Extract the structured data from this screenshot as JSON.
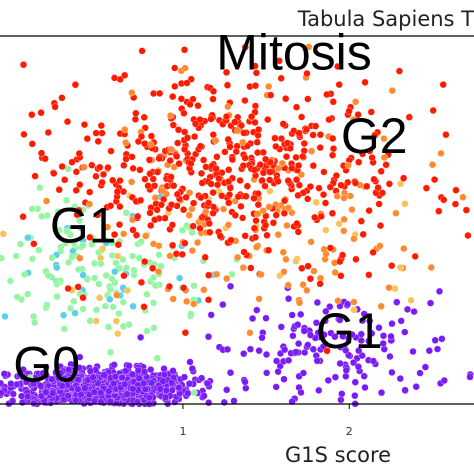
{
  "chart_data": {
    "type": "scatter",
    "title": "Tabula Sapiens T",
    "xlabel": "G1S score",
    "ylabel": "",
    "xlim": [
      -0.1,
      2.75
    ],
    "ylim": [
      0,
      3.3
    ],
    "x_ticks": [
      "1",
      "2"
    ],
    "grid": false,
    "colormap": "rainbow",
    "colors": [
      "#7a1cf6",
      "#4a6cf4",
      "#5ad0e8",
      "#95f5a2",
      "#f9c35b",
      "#ff8a30",
      "#ff1a00"
    ],
    "annotations": [
      {
        "text": "Mitosis",
        "x": 1.2,
        "y": 3.0
      },
      {
        "text": "G2",
        "x": 1.95,
        "y": 2.25
      },
      {
        "text": "G1",
        "x": 0.2,
        "y": 1.45
      },
      {
        "text": "G1",
        "x": 1.8,
        "y": 0.5
      },
      {
        "text": "G0",
        "x": -0.02,
        "y": 0.2
      }
    ],
    "clusters": [
      {
        "label": "G0",
        "color_level": 0,
        "x_center": 0.5,
        "y_center": 0.15,
        "x_spread": 0.5,
        "y_spread": 0.15,
        "count": 900
      },
      {
        "label": "G1",
        "color_level": 0,
        "x_center": 1.9,
        "y_center": 0.5,
        "x_spread": 0.7,
        "y_spread": 0.45,
        "count": 160
      },
      {
        "label": "G1",
        "color_level": 3,
        "x_center": 0.5,
        "y_center": 1.2,
        "x_spread": 0.6,
        "y_spread": 0.6,
        "count": 190
      },
      {
        "label": "G2",
        "color_level": 5,
        "x_center": 1.6,
        "y_center": 1.5,
        "x_spread": 0.9,
        "y_spread": 0.7,
        "count": 130
      },
      {
        "label": "Mitosis",
        "color_level": 6,
        "x_center": 1.2,
        "y_center": 2.1,
        "x_spread": 1.0,
        "y_spread": 0.8,
        "count": 600
      }
    ]
  }
}
